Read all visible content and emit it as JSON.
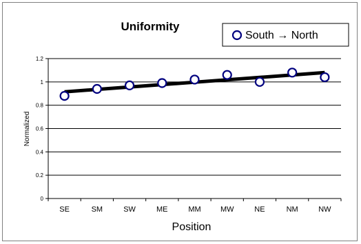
{
  "chart_data": {
    "type": "scatter",
    "title": "Uniformity",
    "xlabel": "Position",
    "ylabel": "Normalized",
    "categories": [
      "SE",
      "SM",
      "SW",
      "ME",
      "MM",
      "MW",
      "NE",
      "NM",
      "NW"
    ],
    "series": [
      {
        "name": "South → North",
        "values": [
          0.88,
          0.94,
          0.97,
          0.99,
          1.02,
          1.06,
          1.0,
          1.08,
          1.04
        ],
        "marker": "circle",
        "color": "#00007f"
      }
    ],
    "trendline": {
      "type": "linear",
      "start": 0.915,
      "end": 1.08,
      "color": "#000000"
    },
    "yticks": [
      "0",
      "0.2",
      "0.4",
      "0.6",
      "0.8",
      "1",
      "1.2"
    ],
    "ylim": [
      0,
      1.2
    ],
    "grid": true,
    "legend_position": "top-right"
  }
}
